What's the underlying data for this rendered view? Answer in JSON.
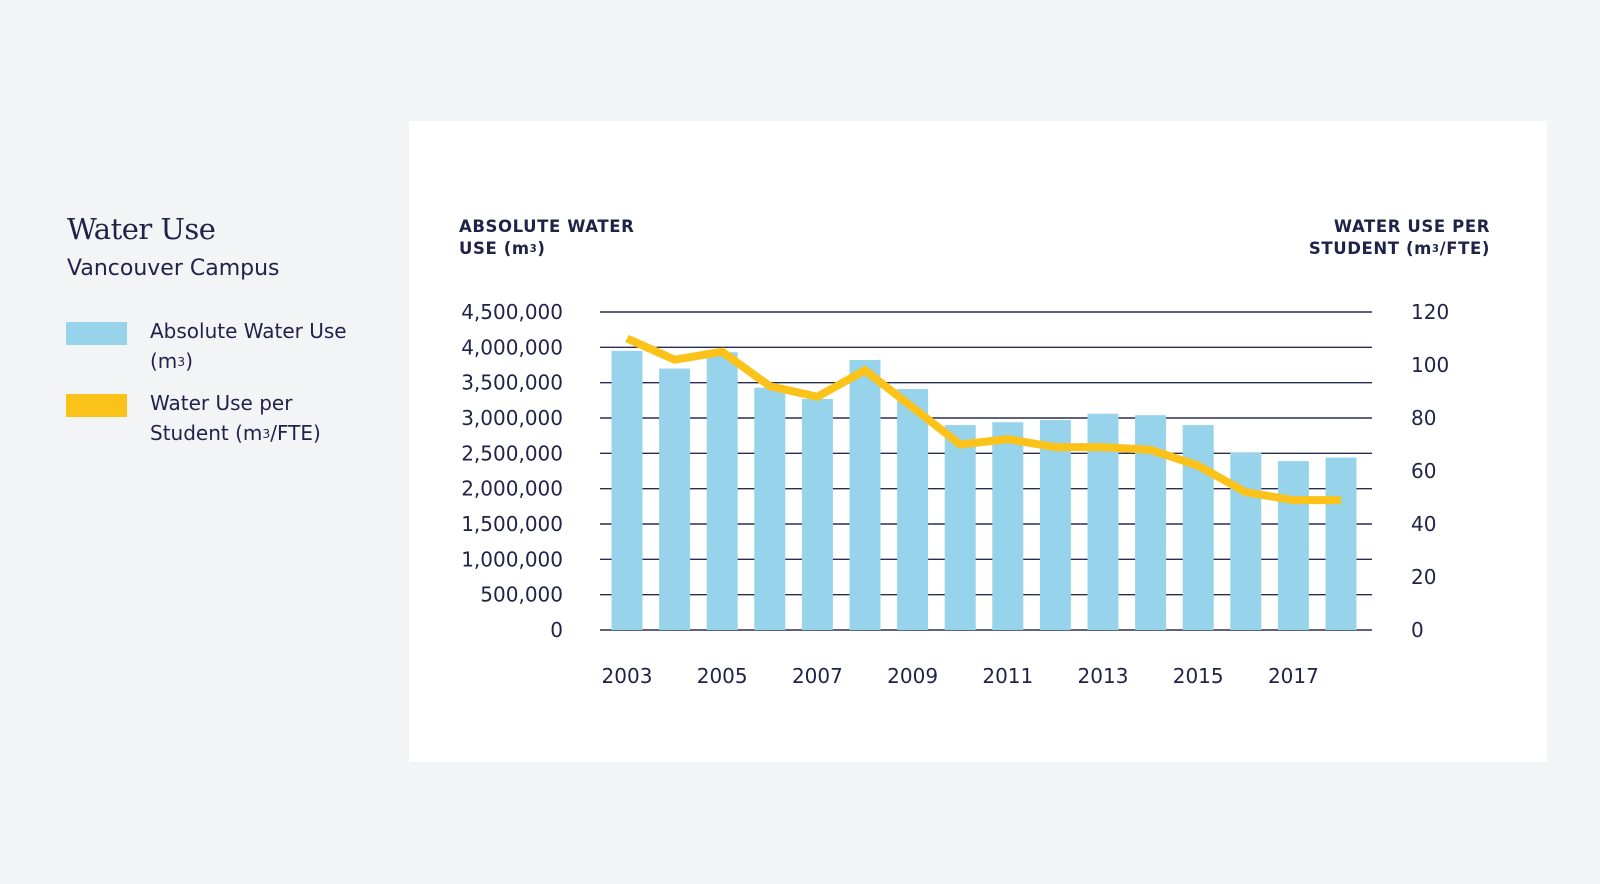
{
  "heading": {
    "title": "Water Use",
    "subtitle": "Vancouver Campus"
  },
  "legend": [
    {
      "label_main": "Absolute Water Use (m",
      "label_sup": "3",
      "label_tail": ")",
      "color": "#97d3ea"
    },
    {
      "label_main": "Water Use per Student (m",
      "label_sup": "3",
      "label_tail": "/FTE)",
      "color": "#fbc31a"
    }
  ],
  "axis_titles": {
    "left_line1": "ABSOLUTE WATER",
    "left_line2_main": "USE (m",
    "left_line2_sup": "3",
    "left_line2_tail": ")",
    "right_line1": "WATER USE PER",
    "right_line2_main": "STUDENT (m",
    "right_line2_sup": "3",
    "right_line2_tail": "/FTE)"
  },
  "chart_data": {
    "type": "bar",
    "title": "Water Use",
    "subtitle": "Vancouver Campus",
    "categories": [
      "2003",
      "2004",
      "2005",
      "2006",
      "2007",
      "2008",
      "2009",
      "2010",
      "2011",
      "2012",
      "2013",
      "2014",
      "2015",
      "2016",
      "2017",
      "2018"
    ],
    "x_tick_labels": [
      "2003",
      "2005",
      "2007",
      "2009",
      "2011",
      "2013",
      "2015",
      "2017"
    ],
    "series": [
      {
        "name": "Absolute Water Use (m3)",
        "type": "bar",
        "axis": "left",
        "color": "#97d3ea",
        "values": [
          3950000,
          3700000,
          3930000,
          3430000,
          3270000,
          3820000,
          3410000,
          2900000,
          2940000,
          2970000,
          3060000,
          3040000,
          2900000,
          2510000,
          2390000,
          2440000
        ]
      },
      {
        "name": "Water Use per Student (m3/FTE)",
        "type": "line",
        "axis": "right",
        "color": "#fbc31a",
        "values": [
          110,
          102,
          105,
          92,
          88,
          98,
          84,
          70,
          72,
          69,
          69,
          68,
          62,
          52,
          49,
          49
        ]
      }
    ],
    "y_left": {
      "label": "ABSOLUTE WATER USE (m3)",
      "range": [
        0,
        4500000
      ],
      "ticks": [
        "0",
        "500,000",
        "1,000,000",
        "1,500,000",
        "2,000,000",
        "2,500,000",
        "3,000,000",
        "3,500,000",
        "4,000,000",
        "4,500,000"
      ]
    },
    "y_right": {
      "label": "WATER USE PER STUDENT (m3/FTE)",
      "range": [
        0,
        120
      ],
      "ticks": [
        "0",
        "20",
        "40",
        "60",
        "80",
        "100",
        "120"
      ]
    },
    "grid": true,
    "legend_position": "left"
  }
}
